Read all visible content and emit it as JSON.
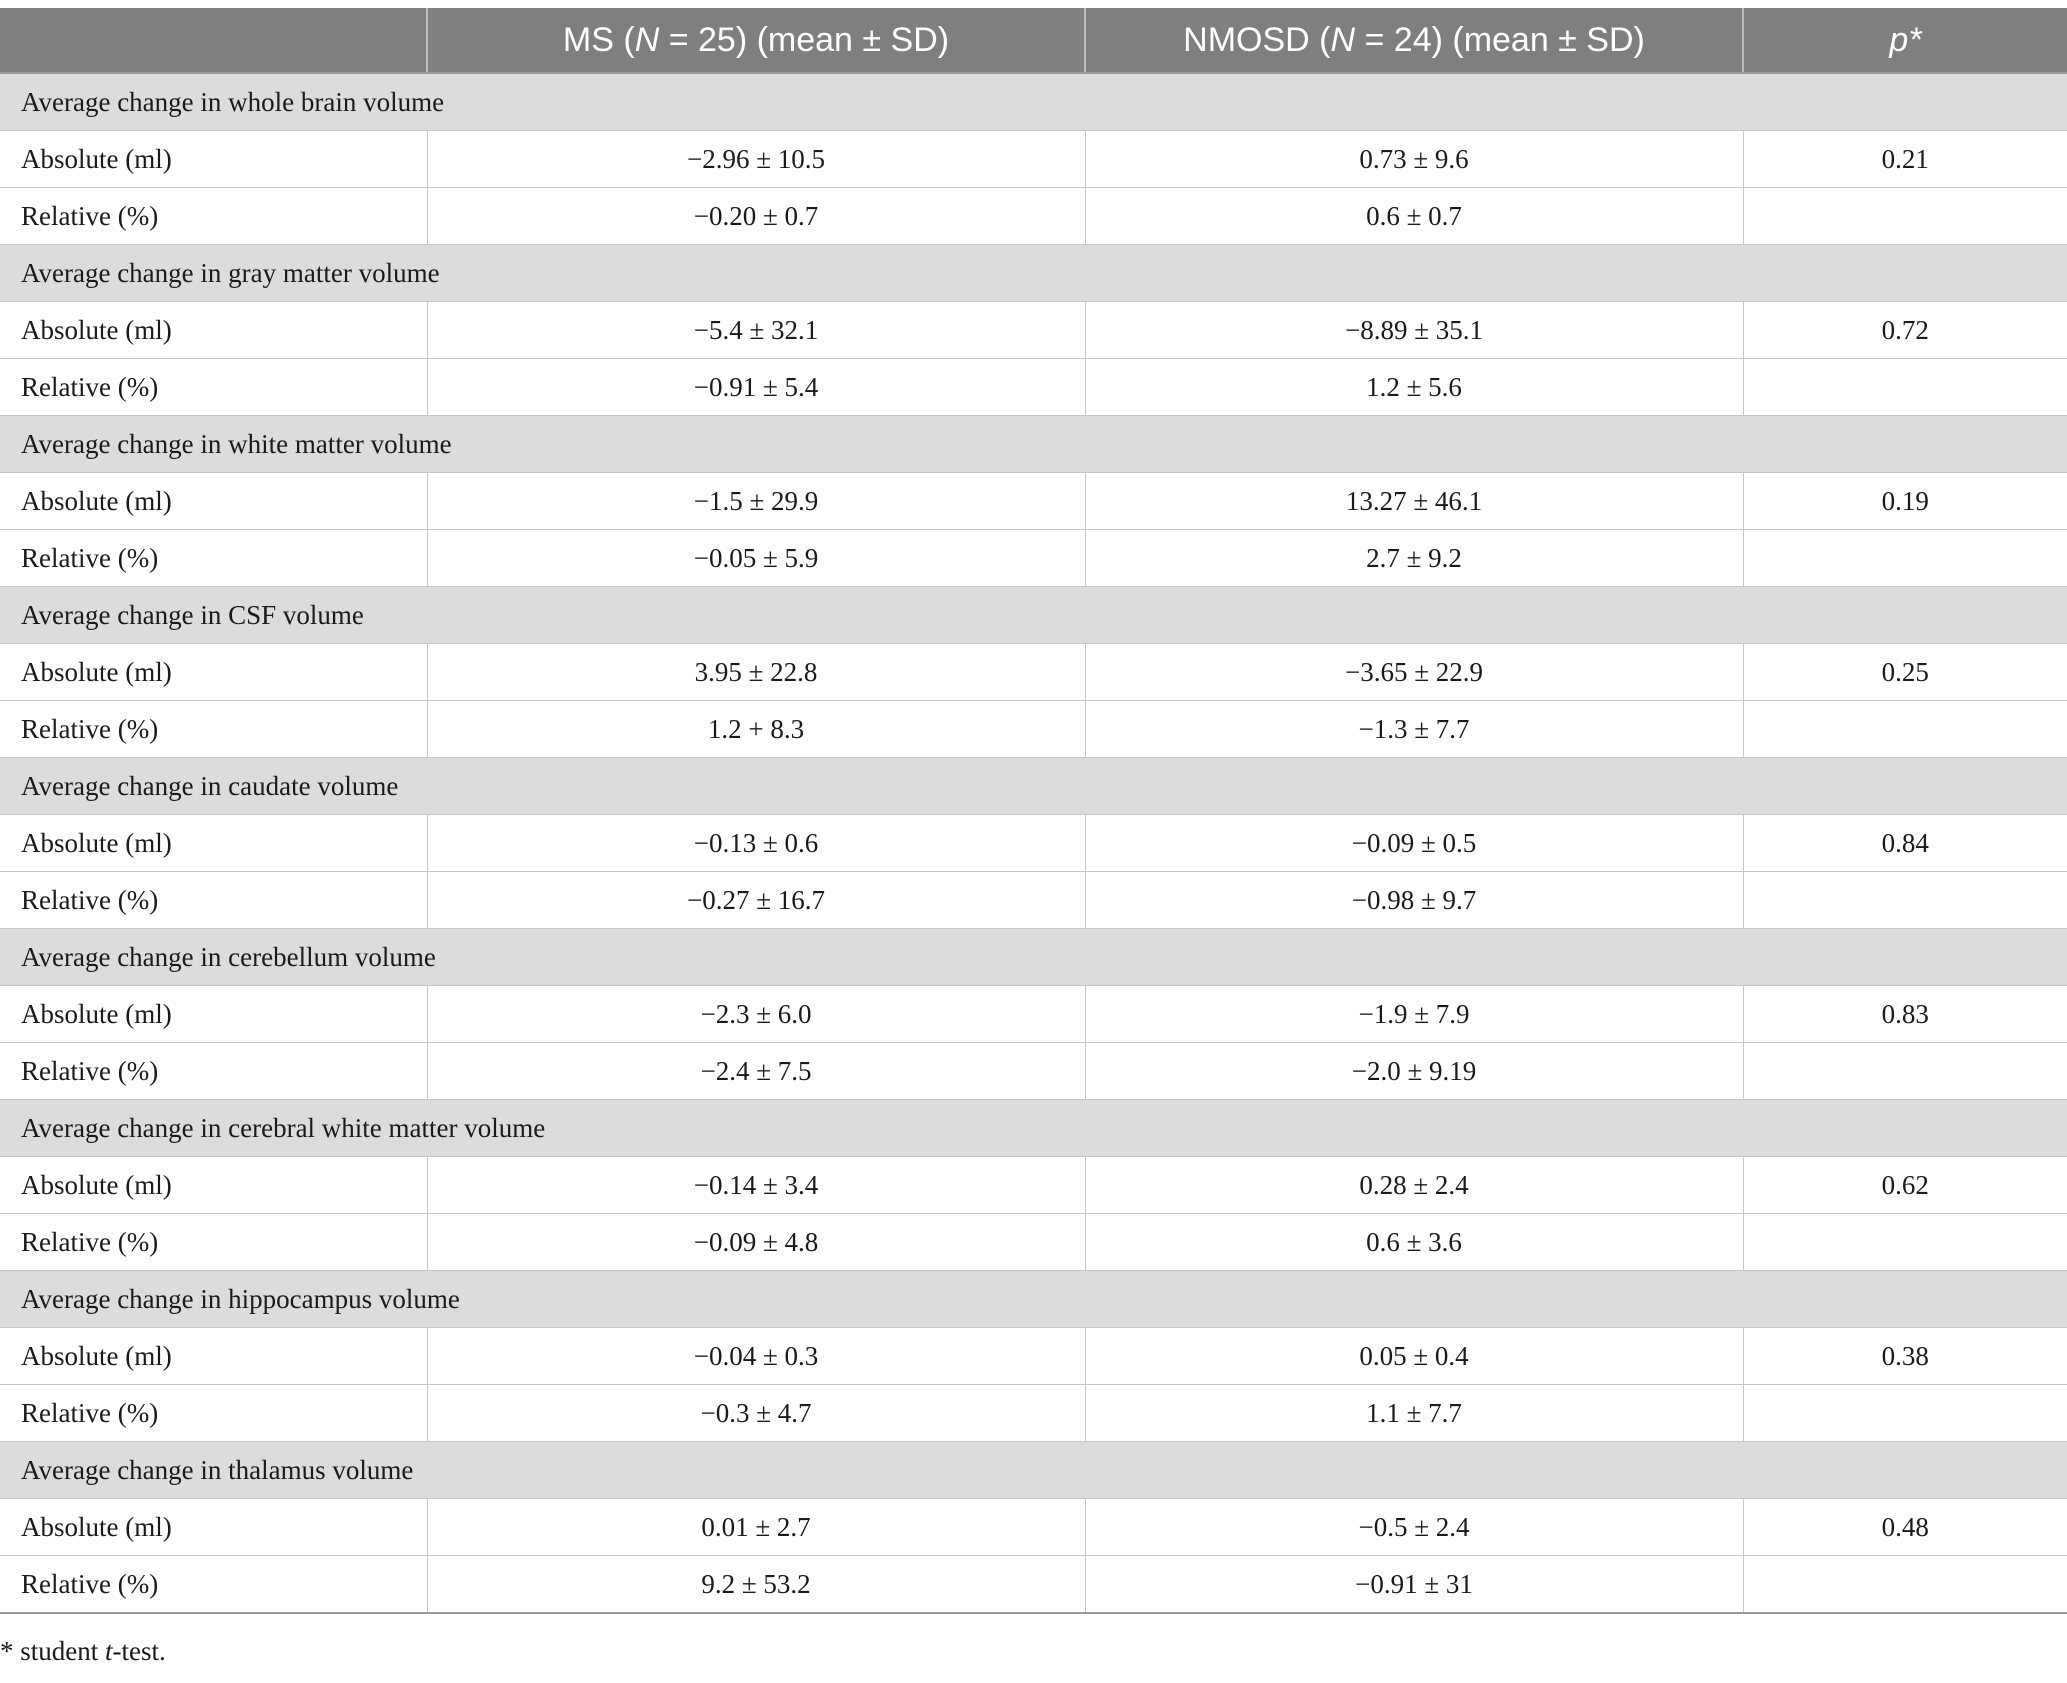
{
  "table": {
    "headers": {
      "blank": "",
      "ms_pre": "MS (",
      "ms_n": "N",
      "ms_post": " = 25) (mean ± SD)",
      "nmosd_pre": "NMOSD (",
      "nmosd_n": "N",
      "nmosd_post": " = 24) (mean ± SD)",
      "p": "p*"
    },
    "groups": [
      {
        "title": "Average change in whole brain volume",
        "rows": [
          {
            "label": "Absolute (ml)",
            "ms": "−2.96 ± 10.5",
            "nmosd": "0.73 ± 9.6",
            "p": "0.21"
          },
          {
            "label": "Relative (%)",
            "ms": "−0.20 ± 0.7",
            "nmosd": "0.6 ± 0.7",
            "p": ""
          }
        ]
      },
      {
        "title": "Average change in gray matter volume",
        "rows": [
          {
            "label": "Absolute (ml)",
            "ms": "−5.4 ± 32.1",
            "nmosd": "−8.89 ± 35.1",
            "p": "0.72"
          },
          {
            "label": "Relative (%)",
            "ms": "−0.91 ± 5.4",
            "nmosd": "1.2 ± 5.6",
            "p": ""
          }
        ]
      },
      {
        "title": "Average change in white matter volume",
        "rows": [
          {
            "label": "Absolute (ml)",
            "ms": "−1.5 ± 29.9",
            "nmosd": "13.27 ± 46.1",
            "p": "0.19"
          },
          {
            "label": "Relative (%)",
            "ms": "−0.05 ± 5.9",
            "nmosd": "2.7 ± 9.2",
            "p": ""
          }
        ]
      },
      {
        "title": "Average change in CSF volume",
        "rows": [
          {
            "label": "Absolute (ml)",
            "ms": "3.95 ± 22.8",
            "nmosd": "−3.65 ± 22.9",
            "p": "0.25"
          },
          {
            "label": "Relative (%)",
            "ms": "1.2 + 8.3",
            "nmosd": "−1.3 ± 7.7",
            "p": ""
          }
        ]
      },
      {
        "title": "Average change in caudate volume",
        "rows": [
          {
            "label": "Absolute (ml)",
            "ms": "−0.13 ± 0.6",
            "nmosd": "−0.09 ± 0.5",
            "p": "0.84"
          },
          {
            "label": "Relative (%)",
            "ms": "−0.27 ± 16.7",
            "nmosd": "−0.98 ± 9.7",
            "p": ""
          }
        ]
      },
      {
        "title": "Average change in cerebellum volume",
        "rows": [
          {
            "label": "Absolute (ml)",
            "ms": "−2.3 ± 6.0",
            "nmosd": "−1.9 ± 7.9",
            "p": "0.83"
          },
          {
            "label": "Relative (%)",
            "ms": "−2.4 ± 7.5",
            "nmosd": "−2.0 ± 9.19",
            "p": ""
          }
        ]
      },
      {
        "title": "Average change in cerebral white matter volume",
        "rows": [
          {
            "label": "Absolute (ml)",
            "ms": "−0.14 ± 3.4",
            "nmosd": "0.28 ± 2.4",
            "p": "0.62"
          },
          {
            "label": "Relative (%)",
            "ms": "−0.09 ± 4.8",
            "nmosd": "0.6 ± 3.6",
            "p": ""
          }
        ]
      },
      {
        "title": "Average change in hippocampus volume",
        "rows": [
          {
            "label": "Absolute (ml)",
            "ms": "−0.04 ± 0.3",
            "nmosd": "0.05 ± 0.4",
            "p": "0.38"
          },
          {
            "label": "Relative (%)",
            "ms": "−0.3 ± 4.7",
            "nmosd": "1.1 ± 7.7",
            "p": ""
          }
        ]
      },
      {
        "title": "Average change in thalamus volume",
        "rows": [
          {
            "label": "Absolute (ml)",
            "ms": "0.01 ± 2.7",
            "nmosd": "−0.5 ± 2.4",
            "p": "0.48"
          },
          {
            "label": "Relative (%)",
            "ms": "9.2 ± 53.2",
            "nmosd": "−0.91 ± 31",
            "p": ""
          }
        ]
      }
    ]
  },
  "footnote": {
    "pre": "* student ",
    "italic": "t",
    "post": "-test."
  }
}
